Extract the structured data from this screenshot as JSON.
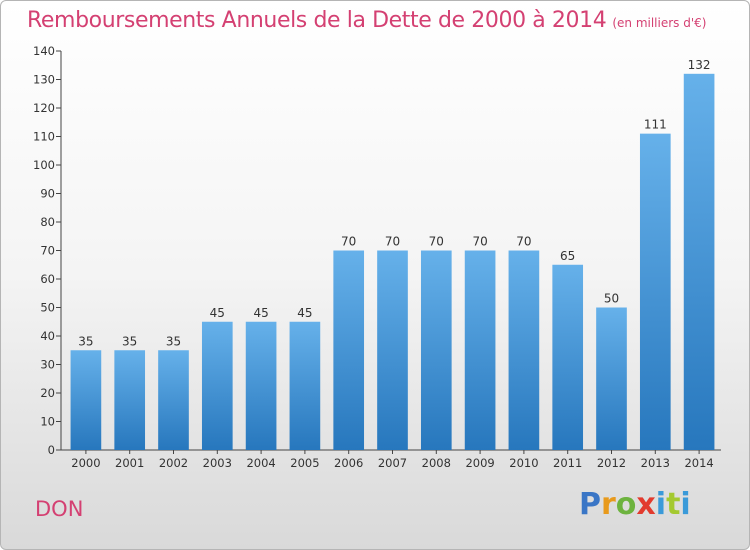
{
  "header": {
    "title": "Remboursements Annuels de la Dette de 2000 à 2014",
    "unit": "(en milliers d'€)"
  },
  "footer": {
    "commune": "DON",
    "logo_letters": [
      "P",
      "r",
      "o",
      "x",
      "i",
      "t",
      "i"
    ]
  },
  "colors": {
    "accent": "#d44072",
    "bar_top": "#66b1ea",
    "bar_bottom": "#2777bd"
  },
  "chart_data": {
    "type": "bar",
    "title": "Remboursements Annuels de la Dette de 2000 à 2014",
    "xlabel": "",
    "ylabel": "",
    "categories": [
      "2000",
      "2001",
      "2002",
      "2003",
      "2004",
      "2005",
      "2006",
      "2007",
      "2008",
      "2009",
      "2010",
      "2011",
      "2012",
      "2013",
      "2014"
    ],
    "values": [
      35,
      35,
      35,
      45,
      45,
      45,
      70,
      70,
      70,
      70,
      70,
      65,
      50,
      111,
      132
    ],
    "ylim": [
      0,
      140
    ],
    "yticks": [
      0,
      10,
      20,
      30,
      40,
      50,
      60,
      70,
      80,
      90,
      100,
      110,
      120,
      130,
      140
    ],
    "grid": false,
    "legend": "none"
  }
}
